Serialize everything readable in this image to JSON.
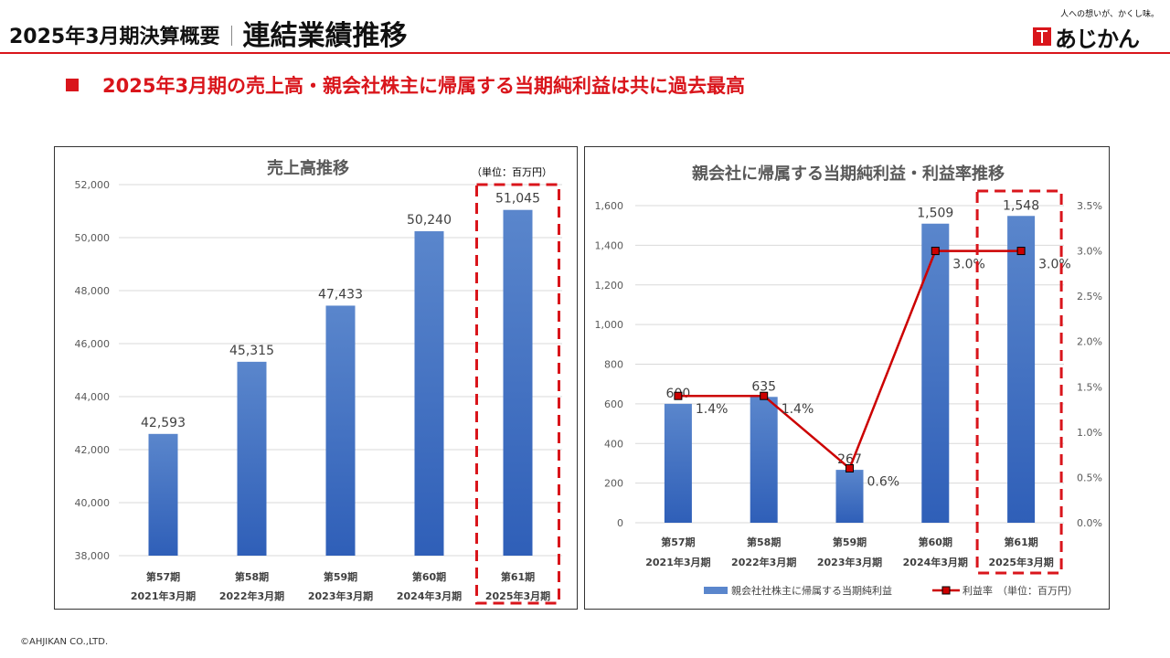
{
  "header": {
    "period_title": "2025年3月期決算概要",
    "section_title": "連結業績推移"
  },
  "logo": {
    "tagline": "人への想いが、かくし味。",
    "wordmark": "あじかん"
  },
  "headline": "2025年3月期の売上高・親会社株主に帰属する当期純利益は共に過去最高",
  "colors": {
    "accent_red": "#d9151b",
    "bar_top": "#5a86cc",
    "bar_bottom": "#2f5fb8",
    "line_red": "#cc0000"
  },
  "chart_data": [
    {
      "type": "bar",
      "title": "売上高推移",
      "unit_note": "（単位：百万円）",
      "categories": [
        [
          "第57期",
          "2021年3月期"
        ],
        [
          "第58期",
          "2022年3月期"
        ],
        [
          "第59期",
          "2023年3月期"
        ],
        [
          "第60期",
          "2024年3月期"
        ],
        [
          "第61期",
          "2025年3月期"
        ]
      ],
      "values": [
        42593,
        45315,
        47433,
        50240,
        51045
      ],
      "value_labels": [
        "42,593",
        "45,315",
        "47,433",
        "50,240",
        "51,045"
      ],
      "ylim": [
        38000,
        52000
      ],
      "yticks": [
        38000,
        40000,
        42000,
        44000,
        46000,
        48000,
        50000,
        52000
      ],
      "ytick_labels": [
        "38,000",
        "40,000",
        "42,000",
        "44,000",
        "46,000",
        "48,000",
        "50,000",
        "52,000"
      ],
      "highlight_index": 4,
      "grid": true
    },
    {
      "type": "bar+line",
      "title": "親会社に帰属する当期純利益・利益率推移",
      "unit_note": "（単位：百万円）",
      "categories": [
        [
          "第57期",
          "2021年3月期"
        ],
        [
          "第58期",
          "2022年3月期"
        ],
        [
          "第59期",
          "2023年3月期"
        ],
        [
          "第60期",
          "2024年3月期"
        ],
        [
          "第61期",
          "2025年3月期"
        ]
      ],
      "series": [
        {
          "name": "親会社社株主に帰属する当期純利益",
          "kind": "bar",
          "axis": "left",
          "values": [
            600,
            635,
            267,
            1509,
            1548
          ],
          "value_labels": [
            "600",
            "635",
            "267",
            "1,509",
            "1,548"
          ]
        },
        {
          "name": "利益率",
          "kind": "line",
          "axis": "right",
          "values": [
            1.4,
            1.4,
            0.6,
            3.0,
            3.0
          ],
          "value_labels": [
            "1.4%",
            "1.4%",
            "0.6%",
            "3.0%",
            "3.0%"
          ]
        }
      ],
      "ylim_left": [
        0,
        1600
      ],
      "yticks_left": [
        0,
        200,
        400,
        600,
        800,
        1000,
        1200,
        1400,
        1600
      ],
      "ytick_labels_left": [
        "0",
        "200",
        "400",
        "600",
        "800",
        "1,000",
        "1,200",
        "1,400",
        "1,600"
      ],
      "ylim_right": [
        0,
        3.5
      ],
      "yticks_right": [
        0,
        0.5,
        1.0,
        1.5,
        2.0,
        2.5,
        3.0,
        3.5
      ],
      "ytick_labels_right": [
        "0.0%",
        "0.5%",
        "1.0%",
        "1.5%",
        "2.0%",
        "2.5%",
        "3.0%",
        "3.5%"
      ],
      "legend_position": "bottom",
      "highlight_index": 4,
      "grid": true
    }
  ],
  "footer": "©AHJIKAN CO.,LTD."
}
